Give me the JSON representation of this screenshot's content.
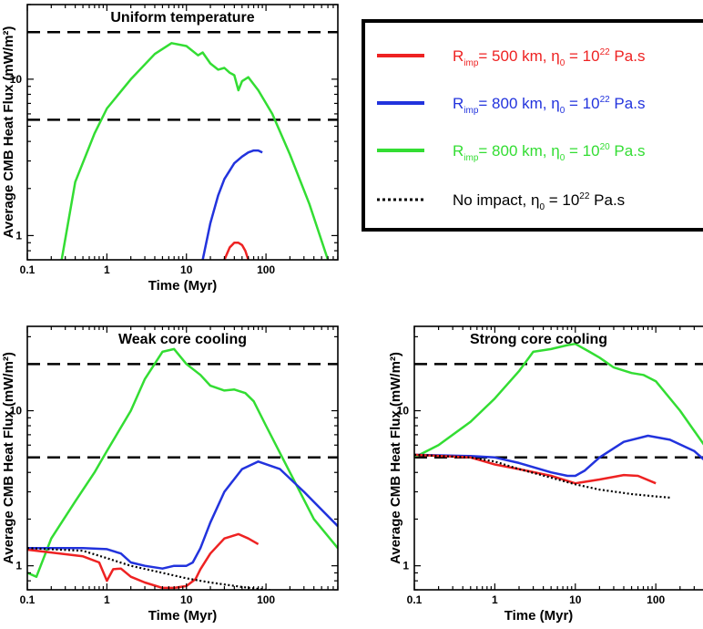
{
  "chart_data": [
    {
      "type": "line",
      "title": "Uniform temperature",
      "xlabel": "Time (Myr)",
      "ylabel": "Average CMB Heat Flux (mW/m²)",
      "xscale": "log",
      "yscale": "log",
      "xlim": [
        0.1,
        800
      ],
      "ylim": [
        0.7,
        30
      ],
      "xticks": [
        "0.1",
        "1",
        "10",
        "100"
      ],
      "yticks": [
        "1",
        "10"
      ],
      "hlines": [
        20,
        5.5
      ],
      "series": [
        {
          "key": "green",
          "color": "#33dd33",
          "x": [
            0.27,
            0.4,
            0.7,
            1,
            2,
            4,
            6.5,
            10,
            14,
            16,
            20,
            25,
            30,
            35,
            40,
            45,
            50,
            60,
            80,
            120,
            200,
            350,
            600
          ],
          "y": [
            0.7,
            2.2,
            4.5,
            6.5,
            10,
            14.5,
            17,
            16.3,
            14.2,
            14.8,
            12.6,
            11.5,
            11.8,
            11,
            10.6,
            8.5,
            9.7,
            10.3,
            8.5,
            6,
            3.3,
            1.6,
            0.7
          ]
        },
        {
          "key": "blue",
          "color": "#2233dd",
          "x": [
            16,
            20,
            25,
            30,
            40,
            50,
            60,
            70,
            80,
            90
          ],
          "y": [
            0.7,
            1.2,
            1.8,
            2.3,
            2.9,
            3.2,
            3.4,
            3.5,
            3.5,
            3.4
          ]
        },
        {
          "key": "red",
          "color": "#ee2222",
          "x": [
            30,
            35,
            40,
            45,
            50,
            55,
            60
          ],
          "y": [
            0.7,
            0.84,
            0.9,
            0.9,
            0.87,
            0.8,
            0.7
          ]
        }
      ]
    },
    {
      "type": "line",
      "title": "Weak core cooling",
      "xlabel": "Time (Myr)",
      "ylabel": "Average CMB Heat Flux (mW/m²)",
      "xscale": "log",
      "yscale": "log",
      "xlim": [
        0.1,
        800
      ],
      "ylim": [
        0.7,
        35
      ],
      "xticks": [
        "0.1",
        "1",
        "10",
        "100"
      ],
      "yticks": [
        "1",
        "10"
      ],
      "hlines": [
        20,
        5
      ],
      "series": [
        {
          "key": "green",
          "color": "#33dd33",
          "x": [
            0.1,
            0.13,
            0.2,
            0.4,
            0.7,
            1,
            2,
            3,
            5,
            7,
            10,
            15,
            20,
            30,
            40,
            55,
            70,
            100,
            200,
            400,
            800
          ],
          "y": [
            0.9,
            0.85,
            1.5,
            2.6,
            4,
            5.5,
            10,
            16,
            24,
            25,
            20,
            17,
            14.5,
            13.5,
            13.7,
            13,
            11.5,
            8,
            4,
            2,
            1.3
          ]
        },
        {
          "key": "blue",
          "color": "#2233dd",
          "x": [
            0.1,
            0.5,
            1,
            1.5,
            2,
            3,
            5,
            7,
            10,
            12,
            15,
            20,
            30,
            50,
            80,
            150,
            300,
            800
          ],
          "y": [
            1.3,
            1.3,
            1.28,
            1.2,
            1.05,
            1,
            0.96,
            1,
            1,
            1.05,
            1.3,
            1.9,
            3,
            4.2,
            4.7,
            4.2,
            3,
            1.8
          ]
        },
        {
          "key": "red",
          "color": "#ee2222",
          "x": [
            0.1,
            0.5,
            0.8,
            1,
            1.2,
            1.5,
            2,
            3,
            5,
            7,
            10,
            13,
            15,
            20,
            30,
            45,
            60,
            80
          ],
          "y": [
            1.27,
            1.15,
            1.05,
            0.8,
            0.95,
            0.96,
            0.85,
            0.78,
            0.72,
            0.72,
            0.74,
            0.82,
            0.95,
            1.2,
            1.5,
            1.6,
            1.5,
            1.38
          ]
        },
        {
          "key": "black",
          "color": "#000000",
          "dotted": true,
          "x": [
            0.1,
            0.5,
            1,
            2,
            5,
            10,
            20,
            50,
            100,
            200
          ],
          "y": [
            1.3,
            1.25,
            1.12,
            1.0,
            0.9,
            0.83,
            0.78,
            0.73,
            0.7,
            0.68
          ]
        }
      ]
    },
    {
      "type": "line",
      "title": "Strong core cooling",
      "xlabel": "Time (Myr)",
      "ylabel": "Average CMB Heat Flux (mW/m²)",
      "xscale": "log",
      "yscale": "log",
      "xlim": [
        0.1,
        800
      ],
      "ylim": [
        0.7,
        35
      ],
      "xticks": [
        "0.1",
        "1",
        "10",
        "100"
      ],
      "yticks": [
        "1",
        "10"
      ],
      "hlines": [
        20,
        5
      ],
      "series": [
        {
          "key": "green",
          "color": "#33dd33",
          "x": [
            0.1,
            0.2,
            0.5,
            1,
            2,
            3,
            5,
            8,
            10,
            15,
            20,
            30,
            50,
            70,
            100,
            200,
            400,
            800
          ],
          "y": [
            5,
            6,
            8.5,
            12,
            18,
            24,
            25,
            26.5,
            27,
            24,
            22,
            19,
            17.5,
            17,
            15.5,
            10,
            6,
            3.8
          ]
        },
        {
          "key": "blue",
          "color": "#2233dd",
          "x": [
            0.1,
            0.5,
            1,
            2,
            5,
            8,
            10,
            13,
            20,
            40,
            80,
            150,
            300,
            800
          ],
          "y": [
            5.2,
            5.1,
            5,
            4.6,
            4,
            3.8,
            3.8,
            4.1,
            5,
            6.3,
            6.9,
            6.5,
            5.5,
            3.5
          ]
        },
        {
          "key": "red",
          "color": "#ee2222",
          "x": [
            0.1,
            0.5,
            1,
            2,
            5,
            10,
            20,
            40,
            60,
            100
          ],
          "y": [
            5.2,
            5,
            4.5,
            4.2,
            3.8,
            3.4,
            3.6,
            3.85,
            3.8,
            3.4
          ]
        },
        {
          "key": "black",
          "color": "#000000",
          "dotted": true,
          "x": [
            0.1,
            0.5,
            1,
            2,
            5,
            10,
            20,
            50,
            100,
            150
          ],
          "y": [
            5.2,
            5,
            4.7,
            4.2,
            3.7,
            3.35,
            3.1,
            2.9,
            2.8,
            2.75
          ]
        }
      ]
    }
  ],
  "legend": {
    "position": "top-right",
    "entries": [
      {
        "key": "red",
        "color": "#ee2222",
        "style": "solid",
        "text_a": "R",
        "sub_a": "imp",
        "text_b": "= 500 km, η",
        "sub_b": "0",
        "text_c": " = 10",
        "sup": "22",
        "text_d": " Pa.s"
      },
      {
        "key": "blue",
        "color": "#2233dd",
        "style": "solid",
        "text_a": "R",
        "sub_a": "imp",
        "text_b": "= 800 km, η",
        "sub_b": "0",
        "text_c": " = 10",
        "sup": "22",
        "text_d": " Pa.s"
      },
      {
        "key": "green",
        "color": "#33dd33",
        "style": "solid",
        "text_a": "R",
        "sub_a": "imp",
        "text_b": "= 800 km, η",
        "sub_b": "0",
        "text_c": " = 10",
        "sup": "20",
        "text_d": " Pa.s"
      },
      {
        "key": "black",
        "color": "#000000",
        "style": "dotted",
        "text_a": "",
        "sub_a": "",
        "text_b": "No impact, η",
        "sub_b": "0",
        "text_c": " = 10",
        "sup": "22",
        "text_d": " Pa.s"
      }
    ]
  }
}
